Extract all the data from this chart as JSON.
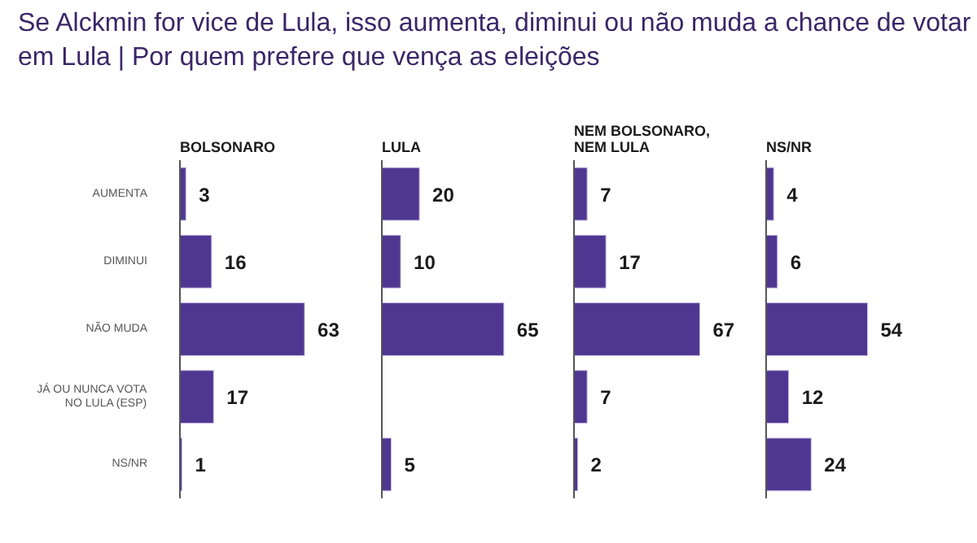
{
  "chart_data": [
    {
      "type": "bar",
      "orientation": "horizontal",
      "title": "Se Alckmin for vice de Lula, isso aumenta, diminui ou não muda a chance de votar em Lula | Por quem prefere que vença as eleições",
      "subtitle": "BOLSONARO",
      "categories": [
        "AUMENTA",
        "DIMINUI",
        "NÃO MUDA",
        "JÁ OU NUNCA VOTA\nNO LULA (ESP)",
        "NS/NR"
      ],
      "values": [
        3,
        16,
        63,
        17,
        1
      ],
      "color": "#4f3791",
      "data_labels": true,
      "tick_labels": "y"
    },
    {
      "type": "bar",
      "orientation": "horizontal",
      "subtitle": "LULA",
      "categories": [
        null,
        null,
        null,
        null,
        null
      ],
      "values": [
        20,
        10,
        65,
        null,
        5
      ],
      "color": "#4f3791",
      "data_labels": true,
      "tick_labels": false
    },
    {
      "type": "bar",
      "orientation": "horizontal",
      "subtitle": "NEM BOLSONARO,\nNEM LULA",
      "categories": [
        null,
        null,
        null,
        null,
        null
      ],
      "values": [
        7,
        17,
        67,
        7,
        2
      ],
      "color": "#4f3791",
      "data_labels": true,
      "tick_labels": false
    },
    {
      "type": "bar",
      "orientation": "horizontal",
      "subtitle": "NS/NR",
      "categories": [
        null,
        null,
        null,
        null,
        null
      ],
      "values": [
        4,
        6,
        54,
        12,
        24
      ],
      "color": "#4f3791",
      "data_labels": true,
      "tick_labels": false
    }
  ]
}
